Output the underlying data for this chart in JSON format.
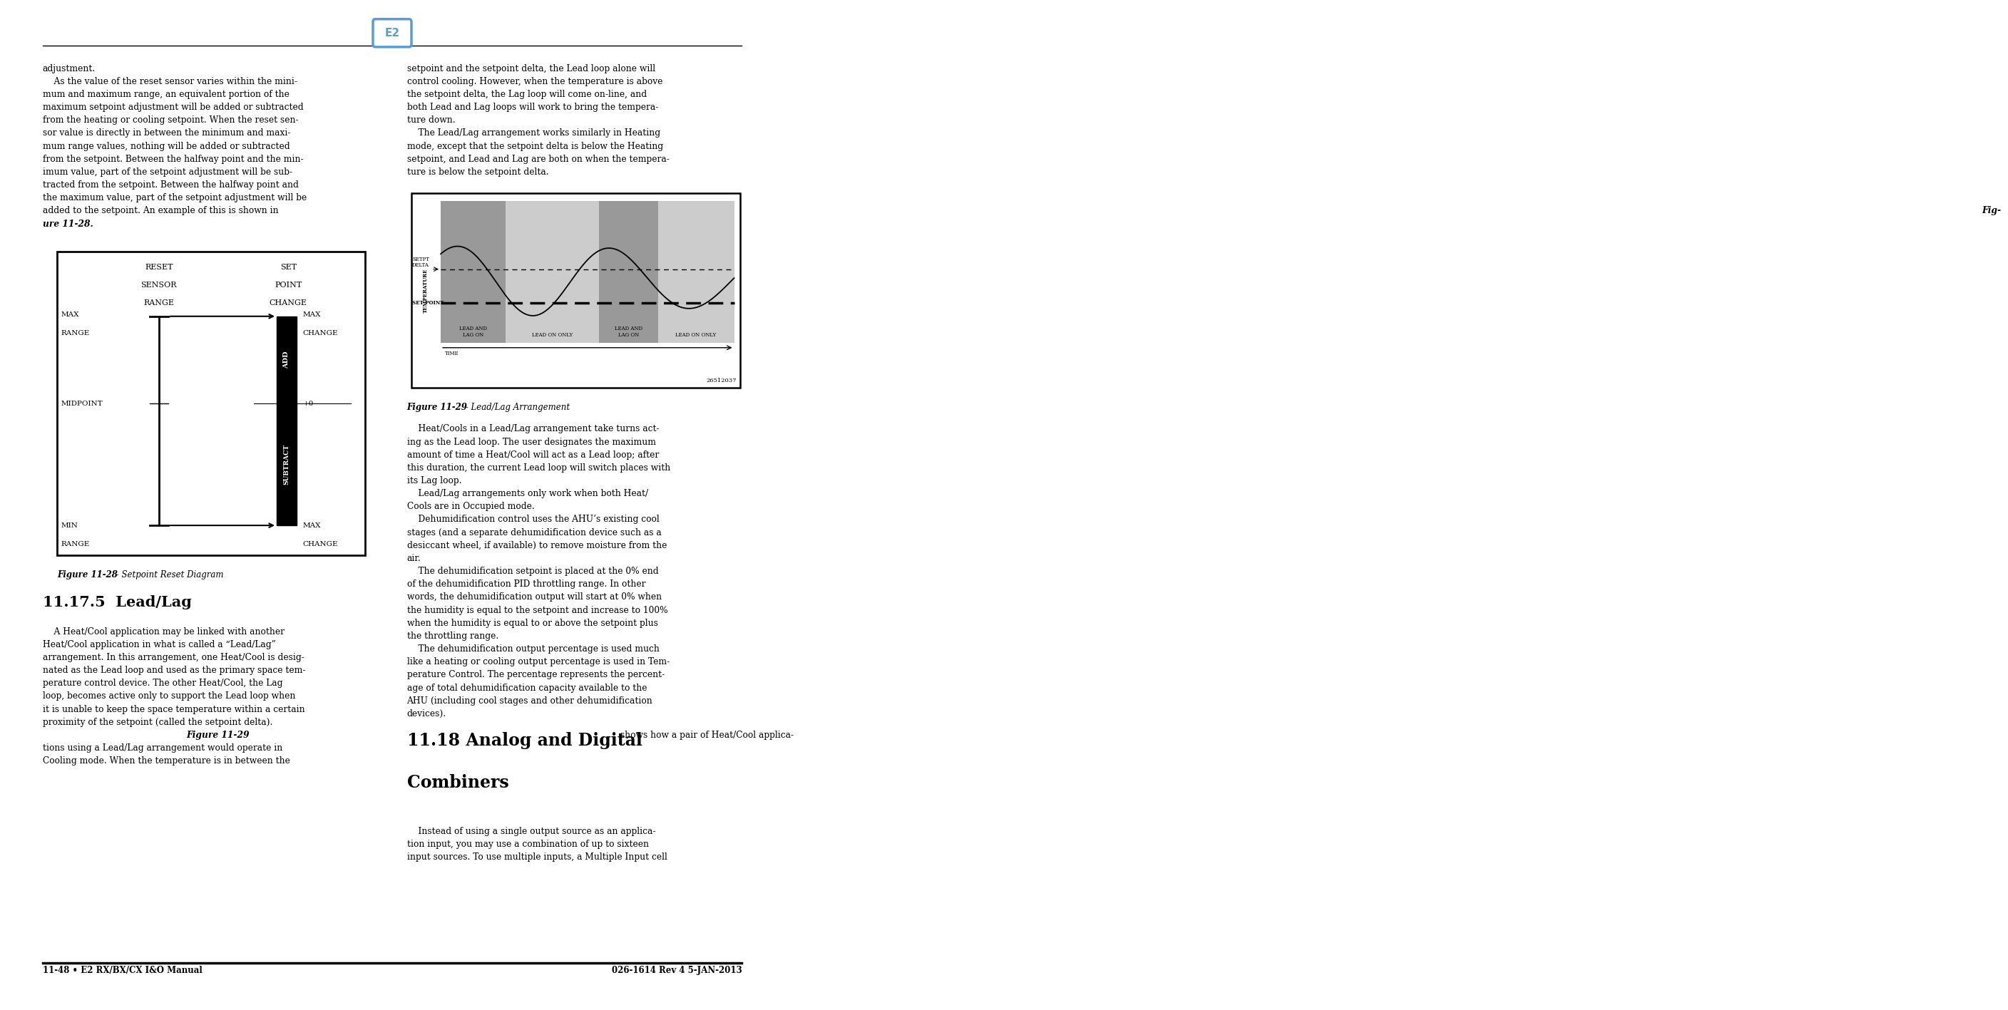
{
  "page_bg": "#ffffff",
  "left_text_top": [
    "adjustment.",
    "    As the value of the reset sensor varies within the mini-",
    "mum and maximum range, an equivalent portion of the",
    "maximum setpoint adjustment will be added or subtracted",
    "from the heating or cooling setpoint. When the reset sen-",
    "sor value is directly in between the minimum and maxi-",
    "mum range values, nothing will be added or subtracted",
    "from the setpoint. Between the halfway point and the min-",
    "imum value, part of the setpoint adjustment will be sub-",
    "tracted from the setpoint. Between the halfway point and",
    "the maximum value, part of the setpoint adjustment will be",
    "added to the setpoint. An example of this is shown in ",
    "ure 11-28."
  ],
  "right_text_top": [
    "setpoint and the setpoint delta, the Lead loop alone will",
    "control cooling. However, when the temperature is above",
    "the setpoint delta, the Lag loop will come on-line, and",
    "both Lead and Lag loops will work to bring the tempera-",
    "ture down.",
    "    The Lead/Lag arrangement works similarly in Heating",
    "mode, except that the setpoint delta is below the Heating",
    "setpoint, and Lead and Lag are both on when the tempera-",
    "ture is below the setpoint delta."
  ],
  "fig28_caption_bold": "Figure 11-28",
  "fig28_caption_normal": " - Setpoint Reset Diagram",
  "fig29_caption_bold": "Figure 11-29",
  "fig29_caption_italic": " - Lead/Lag Arrangement",
  "section_title": "11.17.5  Lead/Lag",
  "section_text": [
    "    A Heat/Cool application may be linked with another",
    "Heat/Cool application in what is called a “Lead/Lag”",
    "arrangement. In this arrangement, one Heat/Cool is desig-",
    "nated as the Lead loop and used as the primary space tem-",
    "perature control device. The other Heat/Cool, the Lag",
    "loop, becomes active only to support the Lead loop when",
    "it is unable to keep the space temperature within a certain",
    "proximity of the setpoint (called the setpoint delta).",
    "    Figure 11-29 shows how a pair of Heat/Cool applica-",
    "tions using a Lead/Lag arrangement would operate in",
    "Cooling mode. When the temperature is in between the"
  ],
  "dehumid_text": [
    "    Heat/Cools in a Lead/Lag arrangement take turns act-",
    "ing as the Lead loop. The user designates the maximum",
    "amount of time a Heat/Cool will act as a Lead loop; after",
    "this duration, the current Lead loop will switch places with",
    "its Lag loop.",
    "    Lead/Lag arrangements only work when both Heat/",
    "Cools are in Occupied mode.",
    "    Dehumidification control uses the AHU’s existing cool",
    "stages (and a separate dehumidification device such as a",
    "desiccant wheel, if available) to remove moisture from the",
    "air.",
    "    The dehumidification setpoint is placed at the 0% end",
    "of the dehumidification PID throttling range. In other",
    "words, the dehumidification output will start at 0% when",
    "the humidity is equal to the setpoint and increase to 100%",
    "when the humidity is equal to or above the setpoint plus",
    "the throttling range.",
    "    The dehumidification output percentage is used much",
    "like a heating or cooling output percentage is used in Tem-",
    "perature Control. The percentage represents the percent-",
    "age of total dehumidification capacity available to the",
    "AHU (including cool stages and other dehumidification",
    "devices)."
  ],
  "right_section_text": [
    "    Instead of using a single output source as an applica-",
    "tion input, you may use a combination of up to sixteen",
    "input sources. To use multiple inputs, a Multiple Input cell"
  ],
  "footer_left": "11-48 • E2 RX/BX/CX I&O Manual",
  "footer_right": "026-1614 Rev 4 5-JAN-2013"
}
